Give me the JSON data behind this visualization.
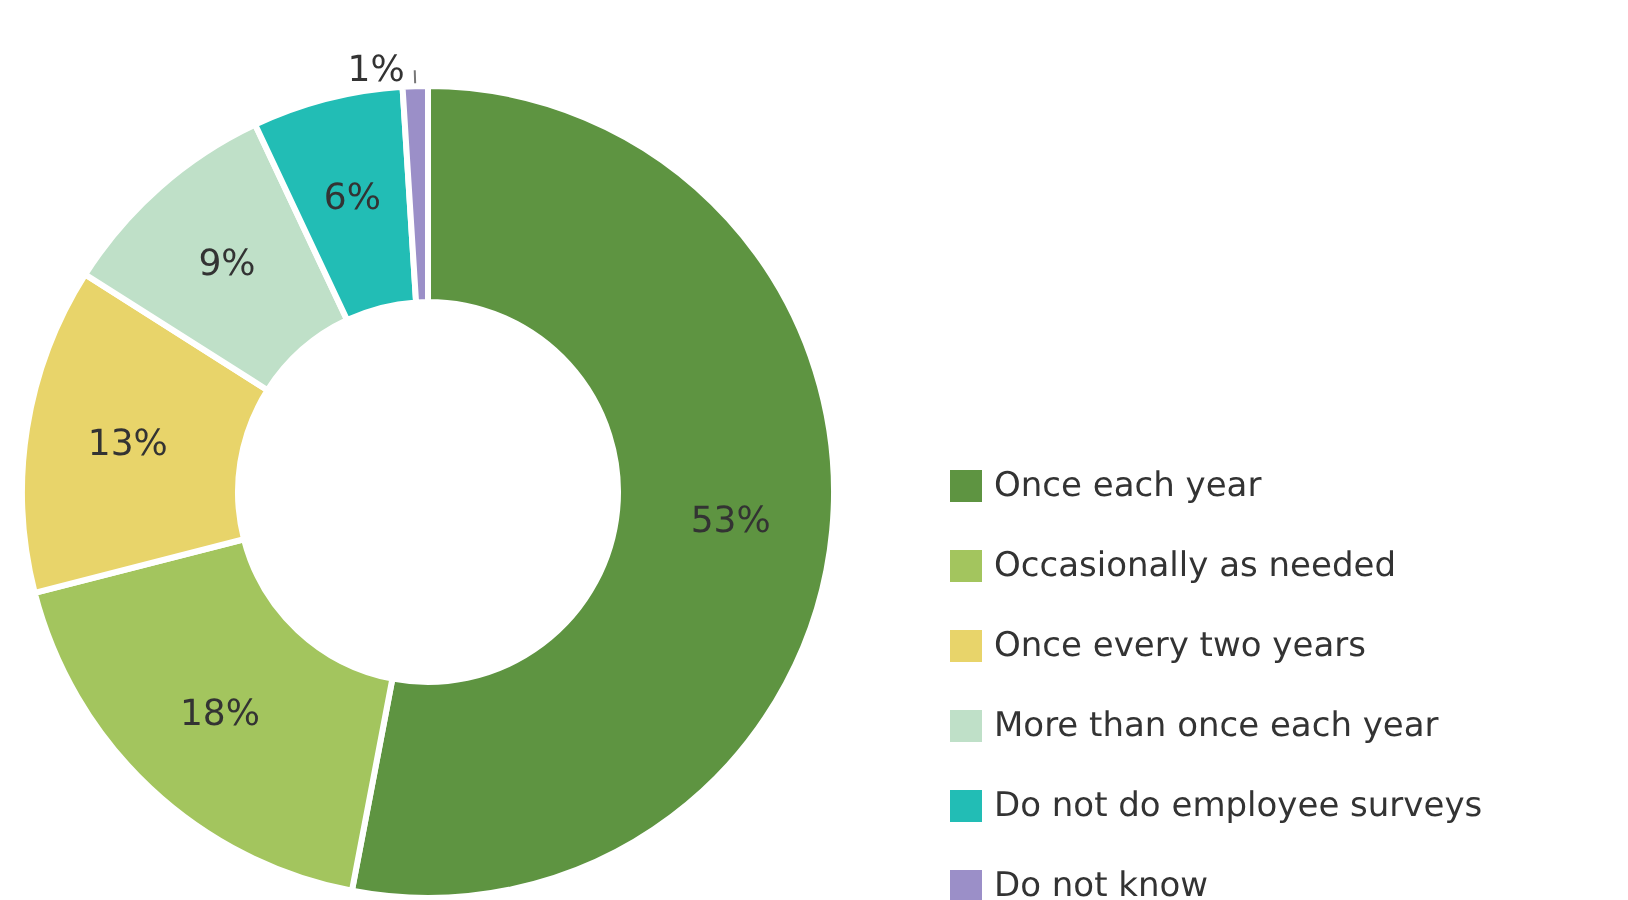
{
  "chart_data": {
    "type": "donut",
    "categories": [
      "Once each year",
      "Occasionally as needed",
      "Once every two years",
      "More than once each year",
      "Do not do employee surveys",
      "Do not know"
    ],
    "values": [
      53,
      18,
      13,
      9,
      6,
      1
    ],
    "colors": [
      "#5e9441",
      "#a3c55e",
      "#e8d46a",
      "#bfe0c8",
      "#22bdb5",
      "#9b8fc8"
    ],
    "value_labels": [
      "53%",
      "18%",
      "13%",
      "9%",
      "6%",
      "1%"
    ],
    "legend": "right"
  }
}
